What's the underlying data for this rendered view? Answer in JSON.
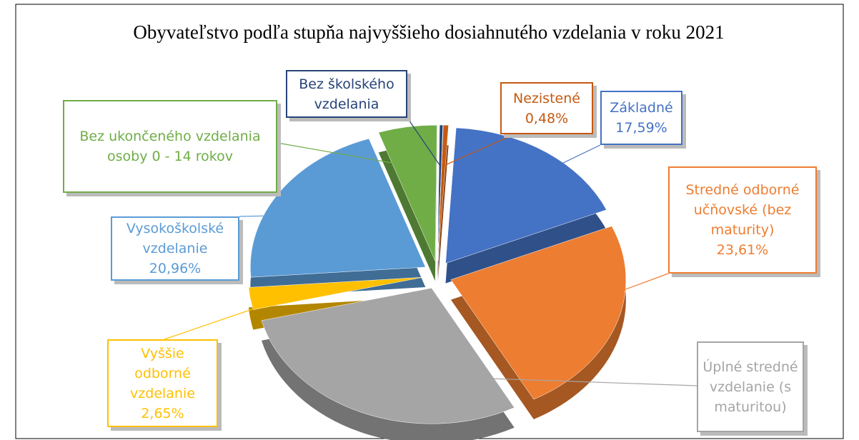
{
  "chart_data": {
    "type": "pie",
    "title": "Obyvateľstvo podľa stupňa najvyššieho dosiahnutého vzdelania v roku 2021",
    "categories": [
      "Nezistené",
      "Základné",
      "Stredné odborné učňovské  (bez maturity)",
      "Úplné stredné vzdelanie (s maturitou)",
      "Vyššie odborné vzdelanie",
      "Vysokoškolské vzdelanie",
      "Bez ukončeného vzdelania osoby 0 - 14 rokov",
      "Bez školského vzdelania"
    ],
    "values": [
      0.48,
      17.59,
      23.61,
      29.0,
      2.65,
      20.96,
      5.41,
      0.3
    ],
    "value_labels": [
      "0,48%",
      "17,59%",
      "23,61%",
      null,
      "2,65%",
      "20,96%",
      null,
      null
    ],
    "colors": [
      "#c55a11",
      "#4472c4",
      "#ed7d31",
      "#a5a5a5",
      "#ffc000",
      "#5b9bd5",
      "#70ad47",
      "#264478"
    ]
  }
}
